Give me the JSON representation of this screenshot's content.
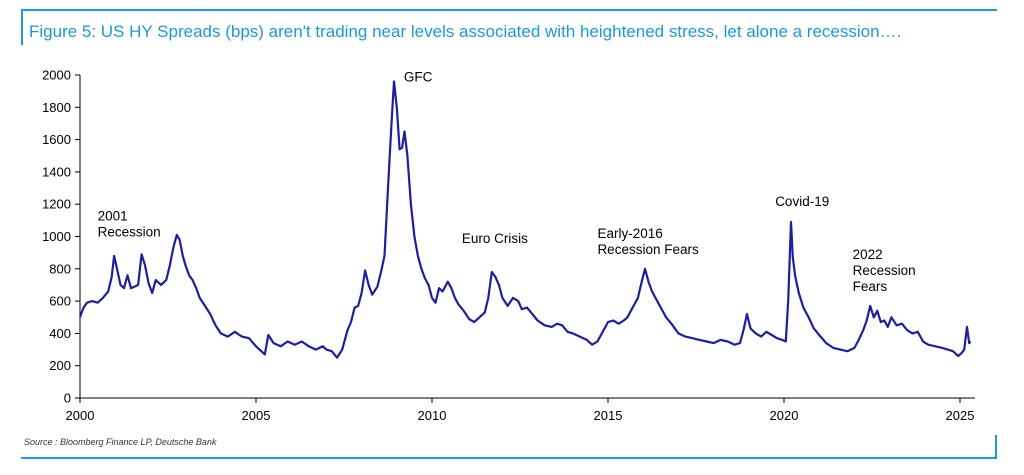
{
  "header": {
    "title": "Figure 5: US HY Spreads (bps) aren't trading near levels associated with heightened stress, let alone a recession…."
  },
  "footer": {
    "source": "Source : Bloomberg Finance LP, Deutsche Bank"
  },
  "colors": {
    "accent": "#1a9ad6",
    "line": "#1c1f9e"
  },
  "chart_data": {
    "type": "line",
    "title": "Figure 5: US HY Spreads (bps) aren't trading near levels associated with heightened stress, let alone a recession….",
    "xlabel": "",
    "ylabel": "",
    "xlim": [
      2000,
      2025.4
    ],
    "ylim": [
      0,
      2000
    ],
    "x_ticks": [
      "2000",
      "2005",
      "2010",
      "2015",
      "2020",
      "2025"
    ],
    "y_ticks": [
      "0",
      "200",
      "400",
      "600",
      "800",
      "1000",
      "1200",
      "1400",
      "1600",
      "1800",
      "2000"
    ],
    "grid": false,
    "legend": "none",
    "annotations": [
      {
        "lines": [
          "2001",
          "Recession"
        ],
        "x": 2000.5,
        "y": 1100
      },
      {
        "lines": [
          "GFC"
        ],
        "x": 2009.2,
        "y": 1960
      },
      {
        "lines": [
          "Euro Crisis"
        ],
        "x": 2010.85,
        "y": 960
      },
      {
        "lines": [
          "Early-2016",
          "Recession Fears"
        ],
        "x": 2014.7,
        "y": 990
      },
      {
        "lines": [
          "Covid-19"
        ],
        "x": 2019.75,
        "y": 1190
      },
      {
        "lines": [
          "2022",
          "Recession",
          "Fears"
        ],
        "x": 2021.95,
        "y": 860
      }
    ],
    "series": [
      {
        "values": [
          [
            2000.0,
            500
          ],
          [
            2000.1,
            560
          ],
          [
            2000.2,
            590
          ],
          [
            2000.35,
            600
          ],
          [
            2000.5,
            590
          ],
          [
            2000.65,
            620
          ],
          [
            2000.8,
            660
          ],
          [
            2000.9,
            750
          ],
          [
            2000.97,
            880
          ],
          [
            2001.05,
            800
          ],
          [
            2001.15,
            700
          ],
          [
            2001.25,
            680
          ],
          [
            2001.35,
            760
          ],
          [
            2001.45,
            680
          ],
          [
            2001.55,
            690
          ],
          [
            2001.65,
            700
          ],
          [
            2001.75,
            890
          ],
          [
            2001.85,
            820
          ],
          [
            2001.95,
            710
          ],
          [
            2002.05,
            650
          ],
          [
            2002.15,
            730
          ],
          [
            2002.3,
            700
          ],
          [
            2002.45,
            730
          ],
          [
            2002.55,
            820
          ],
          [
            2002.65,
            930
          ],
          [
            2002.75,
            1010
          ],
          [
            2002.83,
            980
          ],
          [
            2002.92,
            880
          ],
          [
            2003.0,
            820
          ],
          [
            2003.1,
            760
          ],
          [
            2003.2,
            730
          ],
          [
            2003.3,
            680
          ],
          [
            2003.4,
            620
          ],
          [
            2003.55,
            570
          ],
          [
            2003.7,
            520
          ],
          [
            2003.85,
            450
          ],
          [
            2004.0,
            400
          ],
          [
            2004.2,
            380
          ],
          [
            2004.4,
            410
          ],
          [
            2004.6,
            380
          ],
          [
            2004.8,
            370
          ],
          [
            2005.0,
            320
          ],
          [
            2005.15,
            290
          ],
          [
            2005.25,
            270
          ],
          [
            2005.35,
            390
          ],
          [
            2005.5,
            340
          ],
          [
            2005.7,
            320
          ],
          [
            2005.9,
            350
          ],
          [
            2006.1,
            330
          ],
          [
            2006.3,
            350
          ],
          [
            2006.5,
            320
          ],
          [
            2006.7,
            300
          ],
          [
            2006.9,
            320
          ],
          [
            2007.0,
            300
          ],
          [
            2007.15,
            290
          ],
          [
            2007.3,
            250
          ],
          [
            2007.45,
            300
          ],
          [
            2007.6,
            420
          ],
          [
            2007.7,
            470
          ],
          [
            2007.8,
            560
          ],
          [
            2007.9,
            570
          ],
          [
            2008.0,
            650
          ],
          [
            2008.1,
            790
          ],
          [
            2008.2,
            700
          ],
          [
            2008.3,
            640
          ],
          [
            2008.45,
            690
          ],
          [
            2008.55,
            780
          ],
          [
            2008.65,
            880
          ],
          [
            2008.75,
            1300
          ],
          [
            2008.85,
            1700
          ],
          [
            2008.92,
            1960
          ],
          [
            2009.0,
            1800
          ],
          [
            2009.08,
            1540
          ],
          [
            2009.15,
            1550
          ],
          [
            2009.22,
            1650
          ],
          [
            2009.3,
            1500
          ],
          [
            2009.4,
            1200
          ],
          [
            2009.5,
            1000
          ],
          [
            2009.6,
            880
          ],
          [
            2009.7,
            800
          ],
          [
            2009.8,
            740
          ],
          [
            2009.9,
            700
          ],
          [
            2010.0,
            620
          ],
          [
            2010.1,
            590
          ],
          [
            2010.2,
            680
          ],
          [
            2010.3,
            660
          ],
          [
            2010.45,
            720
          ],
          [
            2010.55,
            680
          ],
          [
            2010.65,
            620
          ],
          [
            2010.75,
            580
          ],
          [
            2010.9,
            540
          ],
          [
            2011.05,
            490
          ],
          [
            2011.2,
            470
          ],
          [
            2011.35,
            500
          ],
          [
            2011.5,
            530
          ],
          [
            2011.6,
            620
          ],
          [
            2011.7,
            780
          ],
          [
            2011.8,
            750
          ],
          [
            2011.9,
            700
          ],
          [
            2012.0,
            620
          ],
          [
            2012.15,
            570
          ],
          [
            2012.3,
            620
          ],
          [
            2012.45,
            600
          ],
          [
            2012.55,
            550
          ],
          [
            2012.7,
            560
          ],
          [
            2012.85,
            520
          ],
          [
            2013.0,
            480
          ],
          [
            2013.2,
            450
          ],
          [
            2013.4,
            440
          ],
          [
            2013.55,
            460
          ],
          [
            2013.7,
            450
          ],
          [
            2013.85,
            410
          ],
          [
            2014.0,
            400
          ],
          [
            2014.2,
            380
          ],
          [
            2014.4,
            360
          ],
          [
            2014.55,
            330
          ],
          [
            2014.7,
            350
          ],
          [
            2014.85,
            410
          ],
          [
            2015.0,
            470
          ],
          [
            2015.15,
            480
          ],
          [
            2015.3,
            460
          ],
          [
            2015.45,
            480
          ],
          [
            2015.55,
            500
          ],
          [
            2015.7,
            560
          ],
          [
            2015.85,
            620
          ],
          [
            2015.97,
            730
          ],
          [
            2016.05,
            800
          ],
          [
            2016.15,
            720
          ],
          [
            2016.25,
            660
          ],
          [
            2016.35,
            620
          ],
          [
            2016.5,
            560
          ],
          [
            2016.65,
            500
          ],
          [
            2016.8,
            460
          ],
          [
            2017.0,
            400
          ],
          [
            2017.2,
            380
          ],
          [
            2017.4,
            370
          ],
          [
            2017.6,
            360
          ],
          [
            2017.8,
            350
          ],
          [
            2018.0,
            340
          ],
          [
            2018.2,
            360
          ],
          [
            2018.4,
            350
          ],
          [
            2018.6,
            330
          ],
          [
            2018.75,
            340
          ],
          [
            2018.85,
            420
          ],
          [
            2018.95,
            520
          ],
          [
            2019.05,
            430
          ],
          [
            2019.2,
            400
          ],
          [
            2019.35,
            380
          ],
          [
            2019.5,
            410
          ],
          [
            2019.65,
            390
          ],
          [
            2019.8,
            370
          ],
          [
            2019.95,
            360
          ],
          [
            2020.05,
            350
          ],
          [
            2020.12,
            600
          ],
          [
            2020.2,
            1090
          ],
          [
            2020.25,
            870
          ],
          [
            2020.32,
            750
          ],
          [
            2020.42,
            650
          ],
          [
            2020.55,
            560
          ],
          [
            2020.7,
            500
          ],
          [
            2020.85,
            430
          ],
          [
            2021.0,
            390
          ],
          [
            2021.2,
            340
          ],
          [
            2021.4,
            310
          ],
          [
            2021.6,
            300
          ],
          [
            2021.8,
            290
          ],
          [
            2022.0,
            310
          ],
          [
            2022.1,
            350
          ],
          [
            2022.25,
            420
          ],
          [
            2022.35,
            480
          ],
          [
            2022.45,
            570
          ],
          [
            2022.55,
            500
          ],
          [
            2022.65,
            540
          ],
          [
            2022.75,
            470
          ],
          [
            2022.85,
            480
          ],
          [
            2022.95,
            440
          ],
          [
            2023.05,
            500
          ],
          [
            2023.2,
            450
          ],
          [
            2023.35,
            460
          ],
          [
            2023.5,
            420
          ],
          [
            2023.65,
            400
          ],
          [
            2023.8,
            410
          ],
          [
            2023.95,
            350
          ],
          [
            2024.1,
            330
          ],
          [
            2024.3,
            320
          ],
          [
            2024.5,
            310
          ],
          [
            2024.65,
            300
          ],
          [
            2024.8,
            290
          ],
          [
            2024.95,
            260
          ],
          [
            2025.05,
            280
          ],
          [
            2025.12,
            300
          ],
          [
            2025.2,
            440
          ],
          [
            2025.26,
            340
          ],
          [
            2025.3,
            350
          ]
        ]
      }
    ]
  }
}
